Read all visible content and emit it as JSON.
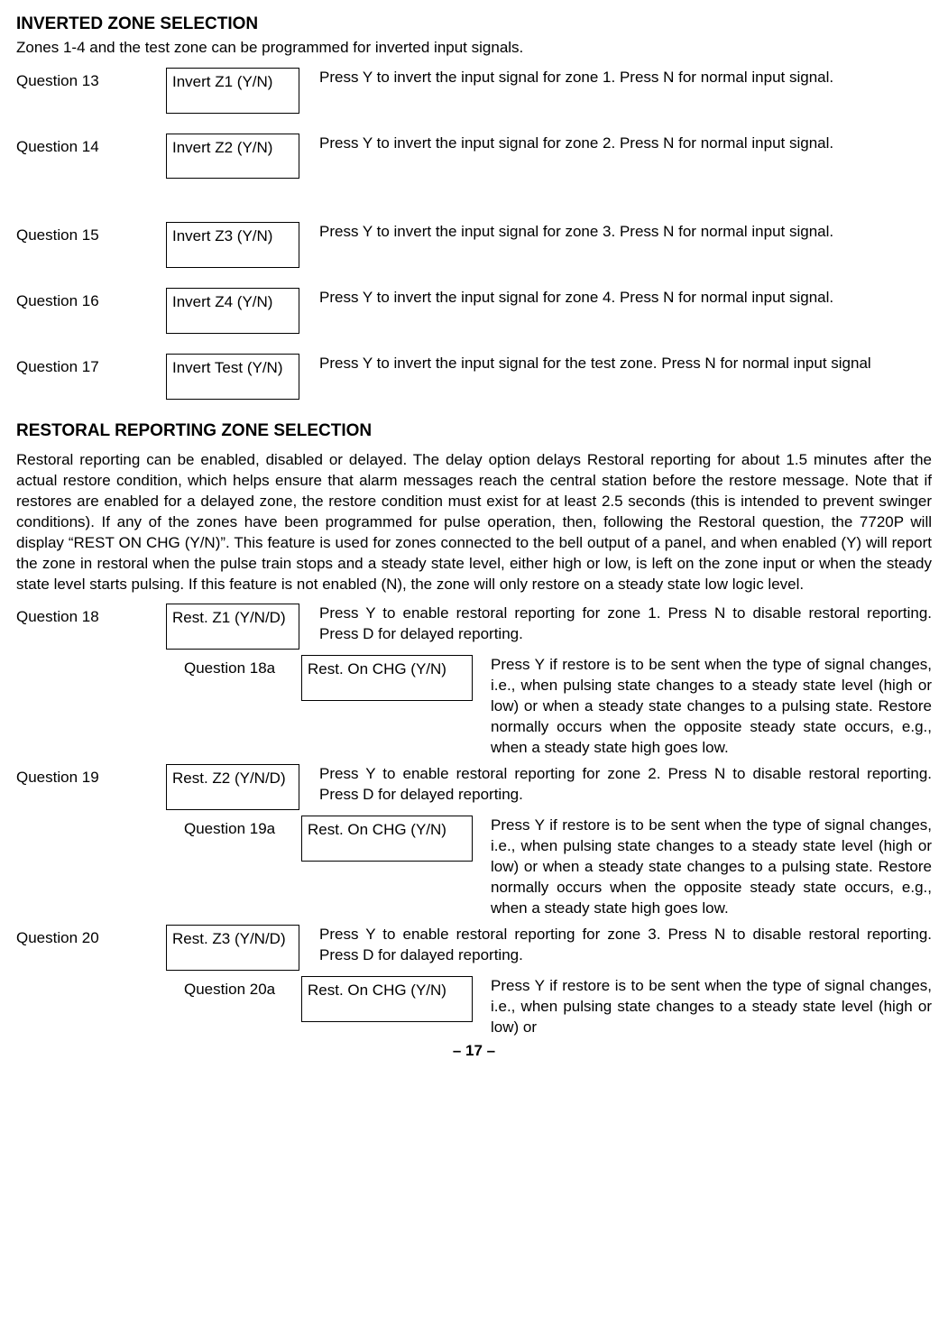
{
  "section1": {
    "title": "INVERTED ZONE SELECTION",
    "intro": "Zones 1-4 and the test zone can be programmed for inverted input signals."
  },
  "q13": {
    "label": "Question 13",
    "box": "Invert Z1 (Y/N)",
    "desc": "Press Y to invert the input signal for zone 1. Press N for normal input signal."
  },
  "q14": {
    "label": "Question 14",
    "box": "Invert Z2 (Y/N)",
    "desc": "Press Y to invert the input signal for zone 2. Press N for normal input signal."
  },
  "q15": {
    "label": "Question 15",
    "box": "Invert Z3 (Y/N)",
    "desc": "Press Y to invert the input signal for zone 3. Press N for normal input signal."
  },
  "q16": {
    "label": "Question 16",
    "box": "Invert Z4 (Y/N)",
    "desc": "Press Y to invert the input signal for zone 4. Press N for normal input signal."
  },
  "q17": {
    "label": "Question 17",
    "box": "Invert Test (Y/N)",
    "desc": "Press Y to invert the input signal for the test zone.  Press N for normal input signal"
  },
  "section2": {
    "title": "RESTORAL REPORTING ZONE SELECTION",
    "para": "Restoral reporting can be enabled, disabled or delayed.  The delay option delays Restoral reporting for about 1.5 minutes after the actual restore condition, which helps ensure that alarm messages reach the central station before the restore message.  Note that if restores are enabled for a delayed zone, the restore condition must exist for at least 2.5 seconds (this is intended to prevent swinger conditions).  If any of the zones have been programmed for pulse operation, then, following the Restoral question, the 7720P will display “REST ON CHG (Y/N)”.  This feature is used for zones connected to the bell output of a panel, and when enabled (Y) will report the zone in restoral when the pulse train stops and a steady state level, either high or low, is left on the zone input or when the steady state level starts pulsing.  If this feature is not enabled (N), the zone will only restore on a steady state low logic level."
  },
  "q18": {
    "label": "Question 18",
    "box": "Rest. Z1 (Y/N/D)",
    "desc": "Press Y to enable restoral reporting for zone 1.  Press N to disable restoral reporting.  Press D for delayed reporting."
  },
  "q18a": {
    "label": "Question 18a",
    "box": "Rest. On CHG (Y/N)",
    "desc": "Press Y if restore is to be sent when the type of signal changes, i.e., when pulsing state changes to a steady state level (high or low) or when a steady state changes to a pulsing state.  Restore normally occurs when the opposite steady state occurs, e.g., when a steady state high goes low."
  },
  "q19": {
    "label": "Question 19",
    "box": "Rest. Z2 (Y/N/D)",
    "desc": "Press Y to enable restoral reporting for zone 2.  Press N to disable restoral reporting.  Press D for delayed reporting."
  },
  "q19a": {
    "label": "Question 19a",
    "box": "Rest. On CHG (Y/N)",
    "desc": "Press Y if restore is to be sent when the type of signal changes, i.e., when pulsing state changes to a steady state level (high or low) or when a steady state changes to a pulsing state.  Restore normally occurs when the opposite steady state occurs, e.g., when a steady state high goes low."
  },
  "q20": {
    "label": "Question 20",
    "box": "Rest. Z3 (Y/N/D)",
    "desc": "Press Y to enable restoral reporting for zone 3.  Press N to disable restoral reporting.  Press D for dalayed reporting."
  },
  "q20a": {
    "label": "Question 20a",
    "box": "Rest. On CHG (Y/N)",
    "desc": "Press Y if restore is to be sent when the type of signal changes, i.e., when pulsing state changes to a steady state level (high or low) or"
  },
  "pagenum": "– 17 –"
}
